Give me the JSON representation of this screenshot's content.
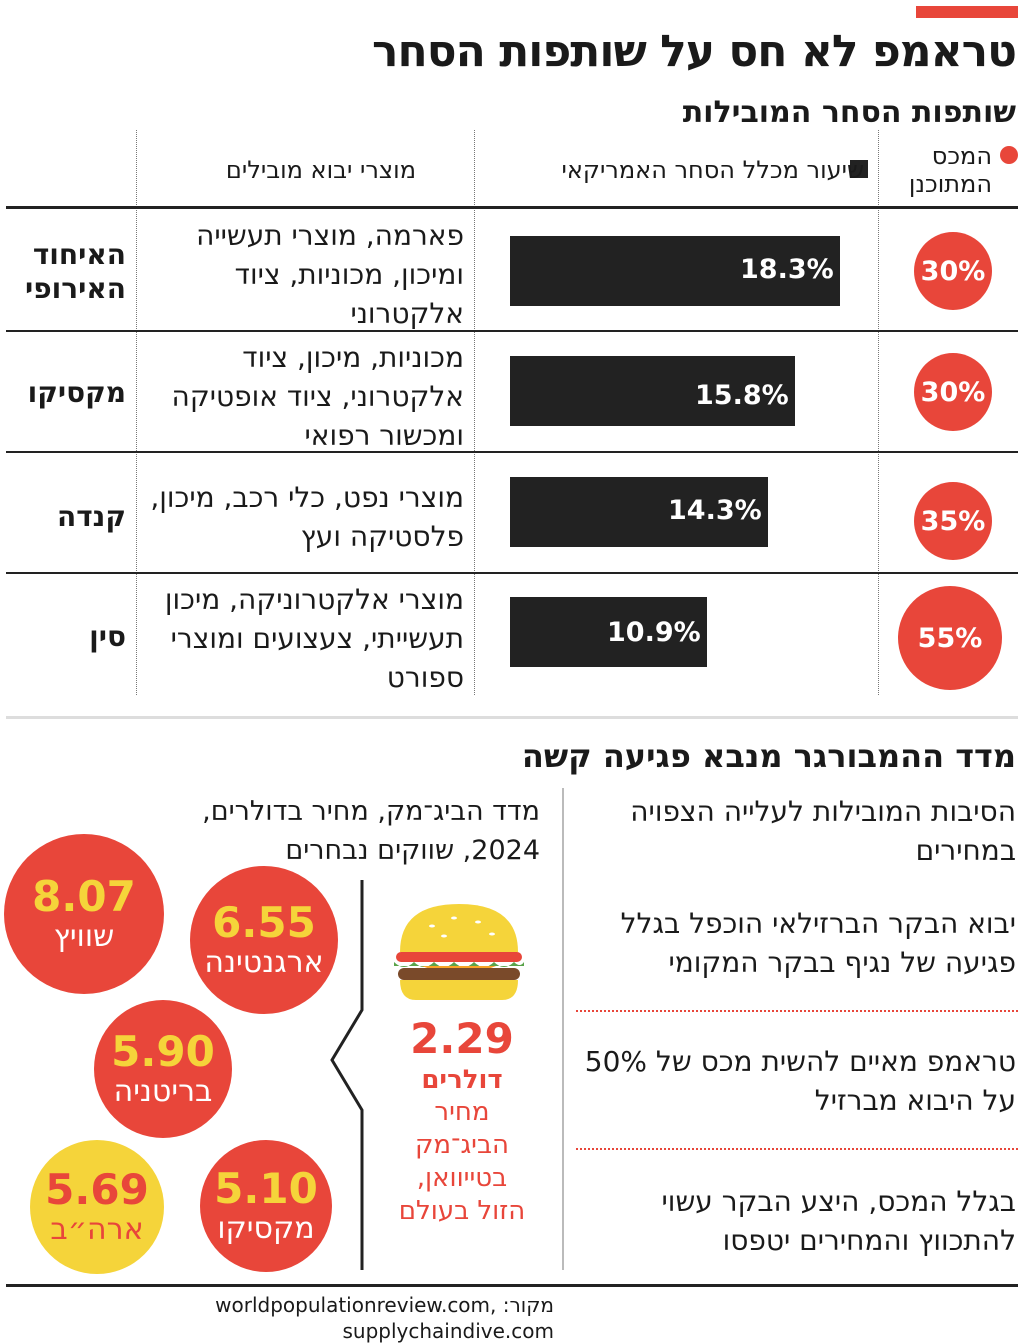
{
  "header": {
    "title": "טראמפ לא חס על שותפות הסחר",
    "subtitle": "שותפות הסחר המובילות"
  },
  "colors": {
    "accent": "#e8463a",
    "bar": "#222222",
    "yellow": "#f5d43a"
  },
  "table": {
    "col_tariff": "המכס המתוכנן",
    "col_share": "שיעור מכלל הסחר האמריקאי",
    "col_products": "מוצרי יבוא מובילים",
    "rows": [
      {
        "country": "האיחוד האירופי",
        "products": "פארמה, מוצרי תעשייה ומיכון, מכוניות, ציוד אלקטרוני",
        "share_label": "18.3%",
        "share": 18.3,
        "tariff": "30%"
      },
      {
        "country": "מקסיקו",
        "products": "מכוניות, מיכון, ציוד אלקטרוני, ציוד אופטיקה ומכשור רפואי",
        "share_label": "15.8%",
        "share": 15.8,
        "tariff": "30%"
      },
      {
        "country": "קנדה",
        "products": "מוצרי נפט, כלי רכב, מיכון, פלסטיקה ועץ",
        "share_label": "14.3%",
        "share": 14.3,
        "tariff": "35%"
      },
      {
        "country": "סין",
        "products": "מוצרי אלקטרוניקה, מיכון תעשייתי, צעצועים ומוצרי ספורט",
        "share_label": "10.9%",
        "share": 10.9,
        "tariff": "55%"
      }
    ]
  },
  "chart_data": {
    "type": "bar",
    "title": "שותפות הסחר המובילות",
    "categories": [
      "האיחוד האירופי",
      "מקסיקו",
      "קנדה",
      "סין"
    ],
    "series": [
      {
        "name": "שיעור מכלל הסחר האמריקאי",
        "values": [
          18.3,
          15.8,
          14.3,
          10.9
        ]
      }
    ],
    "planned_tariff": [
      30,
      30,
      35,
      55
    ],
    "big_mac_index": {
      "title": "מדד הביג־מק, מחיר בדולרים, 2024, שווקים נבחרים",
      "categories": [
        "שוויץ",
        "ארגנטינה",
        "בריטניה",
        "מקסיקו",
        "ארה״ב",
        "טייוואן"
      ],
      "values": [
        8.07,
        6.55,
        5.9,
        5.1,
        5.69,
        2.29
      ]
    }
  },
  "burger_section": {
    "title": "מדד ההמבורגר מנבא פגיעה קשה",
    "index_title": "מדד הביג־מק, מחיר בדולרים, 2024, שווקים נבחרים",
    "bubbles": [
      {
        "value": "8.07",
        "name": "שוויץ"
      },
      {
        "value": "6.55",
        "name": "ארגנטינה"
      },
      {
        "value": "5.90",
        "name": "בריטניה"
      },
      {
        "value": "5.69",
        "name": "ארה״ב"
      },
      {
        "value": "5.10",
        "name": "מקסיקו"
      }
    ],
    "taiwan": {
      "value": "2.29",
      "unit": "דולרים",
      "desc": "מחיר הביג־מק בטייוואן, הזול בעולם"
    },
    "reasons_title": "הסיבות המובילות לעלייה הצפויה במחירים",
    "reasons": [
      "יבוא הבקר הברזילאי הוכפל בגלל פגיעה של נגיף בבקר המקומי",
      "טראמפ מאיים להשית מכס של 50% על היבוא מברזיל",
      "בגלל המכס, היצע הבקר עשוי להתכווץ והמחירים יטפסו"
    ]
  },
  "footer": {
    "source": "מקור: worldpopulationreview.com, supplychaindive.com"
  }
}
